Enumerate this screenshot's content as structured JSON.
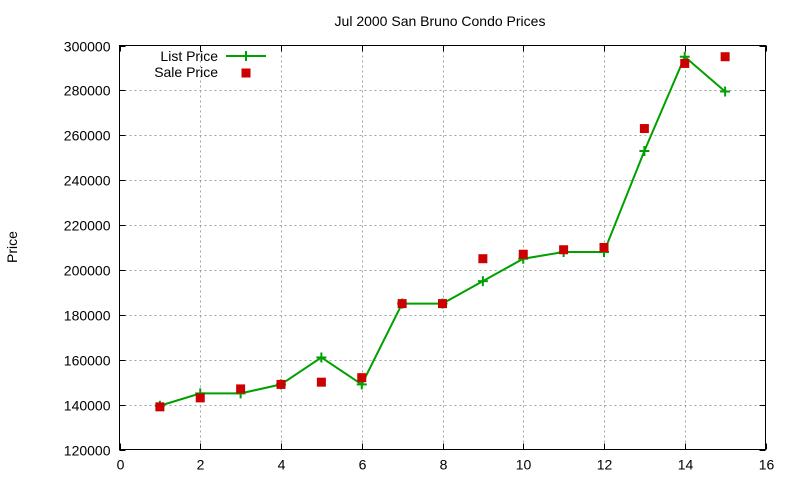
{
  "chart_data": {
    "type": "line",
    "title": "Jul 2000 San Bruno Condo Prices",
    "xlabel": "",
    "ylabel": "Price",
    "xlim": [
      0,
      16
    ],
    "ylim": [
      120000,
      300000
    ],
    "xticks": [
      0,
      2,
      4,
      6,
      8,
      10,
      12,
      14,
      16
    ],
    "yticks": [
      120000,
      140000,
      160000,
      180000,
      200000,
      220000,
      240000,
      260000,
      280000,
      300000
    ],
    "grid": true,
    "legend_position": "top-left",
    "x": [
      1,
      2,
      3,
      4,
      5,
      6,
      7,
      8,
      9,
      10,
      11,
      12,
      13,
      14,
      15
    ],
    "series": [
      {
        "name": "List Price",
        "style": "linespoints",
        "marker": "plus",
        "color": "#00a000",
        "values": [
          139500,
          145000,
          145000,
          149000,
          161000,
          149000,
          185000,
          185000,
          195000,
          205000,
          208000,
          208000,
          253000,
          295000,
          279500
        ]
      },
      {
        "name": "Sale Price",
        "style": "points",
        "marker": "square",
        "color": "#cc0000",
        "values": [
          139000,
          143000,
          147000,
          149000,
          150000,
          152000,
          185000,
          185000,
          205000,
          207000,
          209000,
          210000,
          263000,
          292000,
          295000
        ]
      }
    ]
  }
}
